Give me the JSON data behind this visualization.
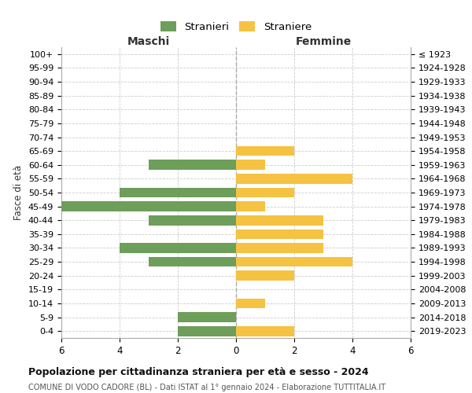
{
  "age_groups": [
    "100+",
    "95-99",
    "90-94",
    "85-89",
    "80-84",
    "75-79",
    "70-74",
    "65-69",
    "60-64",
    "55-59",
    "50-54",
    "45-49",
    "40-44",
    "35-39",
    "30-34",
    "25-29",
    "20-24",
    "15-19",
    "10-14",
    "5-9",
    "0-4"
  ],
  "birth_years": [
    "≤ 1923",
    "1924-1928",
    "1929-1933",
    "1934-1938",
    "1939-1943",
    "1944-1948",
    "1949-1953",
    "1954-1958",
    "1959-1963",
    "1964-1968",
    "1969-1973",
    "1974-1978",
    "1979-1983",
    "1984-1988",
    "1989-1993",
    "1994-1998",
    "1999-2003",
    "2004-2008",
    "2009-2013",
    "2014-2018",
    "2019-2023"
  ],
  "maschi": [
    0,
    0,
    0,
    0,
    0,
    0,
    0,
    0,
    3,
    0,
    4,
    6,
    3,
    0,
    4,
    3,
    0,
    0,
    0,
    2,
    2
  ],
  "femmine": [
    0,
    0,
    0,
    0,
    0,
    0,
    0,
    2,
    1,
    4,
    2,
    1,
    3,
    3,
    3,
    4,
    2,
    0,
    1,
    0,
    2
  ],
  "maschi_color": "#6d9e5a",
  "femmine_color": "#f5c242",
  "grid_color": "#cccccc",
  "xlim": 6,
  "title": "Popolazione per cittadinanza straniera per età e sesso - 2024",
  "subtitle": "COMUNE DI VODO CADORE (BL) - Dati ISTAT al 1° gennaio 2024 - Elaborazione TUTTITALIA.IT",
  "legend_stranieri": "Stranieri",
  "legend_straniere": "Straniere",
  "xlabel_maschi": "Maschi",
  "xlabel_femmine": "Femmine",
  "ylabel_left": "Fasce di età"
}
